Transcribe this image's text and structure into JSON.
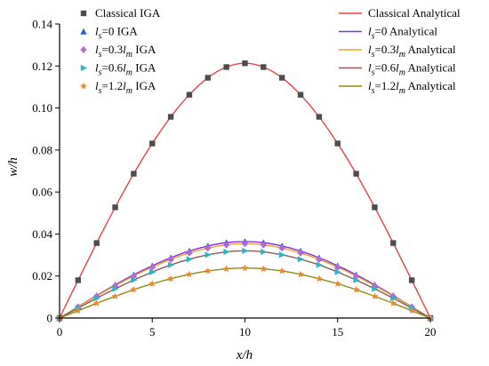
{
  "chart_data": {
    "type": "line",
    "xlabel": "x/h",
    "ylabel": "w/h",
    "xlim": [
      0,
      20
    ],
    "ylim": [
      0,
      0.14
    ],
    "x_ticks": [
      "0",
      "5",
      "10",
      "15",
      "20"
    ],
    "y_ticks": [
      "0",
      "0.02",
      "0.04",
      "0.06",
      "0.08",
      "0.10",
      "0.12",
      "0.14"
    ],
    "grid": false,
    "legend_placement": "top, two columns",
    "x": [
      0,
      1,
      2,
      3,
      4,
      5,
      6,
      7,
      8,
      9,
      10,
      11,
      12,
      13,
      14,
      15,
      16,
      17,
      18,
      19,
      20
    ],
    "series": [
      {
        "name": "Classical IGA",
        "kind": "markers",
        "marker": "square",
        "color": "#4d4d4d",
        "values": [
          0,
          0.018,
          0.0357,
          0.0527,
          0.0687,
          0.0831,
          0.0958,
          0.1063,
          0.1144,
          0.1195,
          0.1213,
          0.1195,
          0.1144,
          0.1063,
          0.0958,
          0.0831,
          0.0687,
          0.0527,
          0.0357,
          0.018,
          0
        ]
      },
      {
        "name": "Classical Analytical",
        "kind": "line",
        "color": "#e8413f",
        "values": [
          0,
          0.018,
          0.0357,
          0.0527,
          0.0687,
          0.0831,
          0.0958,
          0.1063,
          0.1144,
          0.1195,
          0.1213,
          0.1195,
          0.1144,
          0.1063,
          0.0958,
          0.0831,
          0.0687,
          0.0527,
          0.0357,
          0.018,
          0
        ]
      },
      {
        "name": "ls=0 IGA",
        "kind": "markers",
        "marker": "triangle-up",
        "color": "#1f5fd6",
        "values": [
          0,
          0.0054,
          0.0107,
          0.0158,
          0.0206,
          0.0249,
          0.0287,
          0.0319,
          0.0343,
          0.0359,
          0.0364,
          0.0359,
          0.0343,
          0.0319,
          0.0287,
          0.0249,
          0.0206,
          0.0158,
          0.0107,
          0.0054,
          0
        ]
      },
      {
        "name": "ls=0 Analytical",
        "kind": "line",
        "color": "#8a2be2",
        "values": [
          0,
          0.0054,
          0.0107,
          0.0158,
          0.0206,
          0.0249,
          0.0287,
          0.0319,
          0.0343,
          0.0359,
          0.0364,
          0.0359,
          0.0343,
          0.0319,
          0.0287,
          0.0249,
          0.0206,
          0.0158,
          0.0107,
          0.0054,
          0
        ]
      },
      {
        "name": "ls=0.3lm IGA",
        "kind": "markers",
        "marker": "diamond",
        "color": "#b36ad6",
        "values": [
          0,
          0.0053,
          0.0104,
          0.0154,
          0.02,
          0.0242,
          0.0279,
          0.031,
          0.0333,
          0.0348,
          0.0354,
          0.0348,
          0.0333,
          0.031,
          0.0279,
          0.0242,
          0.02,
          0.0154,
          0.0104,
          0.0053,
          0
        ]
      },
      {
        "name": "ls=0.3lm Analytical",
        "kind": "line",
        "color": "#e0a826",
        "values": [
          0,
          0.0053,
          0.0104,
          0.0154,
          0.02,
          0.0242,
          0.0279,
          0.031,
          0.0333,
          0.0348,
          0.0354,
          0.0348,
          0.0333,
          0.031,
          0.0279,
          0.0242,
          0.02,
          0.0154,
          0.0104,
          0.0053,
          0
        ]
      },
      {
        "name": "ls=0.6lm IGA",
        "kind": "markers",
        "marker": "triangle-right",
        "color": "#2ab5c8",
        "values": [
          0,
          0.0047,
          0.0094,
          0.0139,
          0.0181,
          0.0219,
          0.0253,
          0.028,
          0.0301,
          0.0315,
          0.032,
          0.0315,
          0.0301,
          0.028,
          0.0253,
          0.0219,
          0.0181,
          0.0139,
          0.0094,
          0.0047,
          0
        ]
      },
      {
        "name": "ls=0.6lm Analytical",
        "kind": "line",
        "color": "#8b5a5a",
        "values": [
          0,
          0.0047,
          0.0094,
          0.0139,
          0.0181,
          0.0219,
          0.0253,
          0.028,
          0.0301,
          0.0315,
          0.032,
          0.0315,
          0.0301,
          0.028,
          0.0253,
          0.0219,
          0.0181,
          0.0139,
          0.0094,
          0.0047,
          0
        ]
      },
      {
        "name": "ls=1.2lm IGA",
        "kind": "markers",
        "marker": "star",
        "color": "#e88a30",
        "values": [
          0,
          0.0035,
          0.007,
          0.0103,
          0.0135,
          0.0163,
          0.0187,
          0.0208,
          0.0224,
          0.0234,
          0.0238,
          0.0234,
          0.0224,
          0.0208,
          0.0187,
          0.0163,
          0.0135,
          0.0103,
          0.007,
          0.0035,
          0
        ]
      },
      {
        "name": "ls=1.2lm Analytical",
        "kind": "line",
        "color": "#8e8a12",
        "values": [
          0,
          0.0035,
          0.007,
          0.0103,
          0.0135,
          0.0163,
          0.0187,
          0.0208,
          0.0224,
          0.0234,
          0.0238,
          0.0234,
          0.0224,
          0.0208,
          0.0187,
          0.0163,
          0.0135,
          0.0103,
          0.007,
          0.0035,
          0
        ]
      }
    ],
    "legend": [
      {
        "series": 0,
        "prefix": "Classical IGA",
        "value": ""
      },
      {
        "series": 2,
        "prefix": "l",
        "sub": "s",
        "value": "=0 IGA"
      },
      {
        "series": 4,
        "prefix": "l",
        "sub": "s",
        "value": "=0.3",
        "l2": "l",
        "sub2": "m",
        "tail": " IGA"
      },
      {
        "series": 6,
        "prefix": "l",
        "sub": "s",
        "value": "=0.6",
        "l2": "l",
        "sub2": "m",
        "tail": " IGA"
      },
      {
        "series": 8,
        "prefix": "l",
        "sub": "s",
        "value": "=1.2",
        "l2": "l",
        "sub2": "m",
        "tail": " IGA"
      },
      {
        "series": 1,
        "prefix": "Classical Analytical",
        "value": ""
      },
      {
        "series": 3,
        "prefix": "l",
        "sub": "s",
        "value": "=0 Analytical"
      },
      {
        "series": 5,
        "prefix": "l",
        "sub": "s",
        "value": "=0.3",
        "l2": "l",
        "sub2": "m",
        "tail": " Analytical"
      },
      {
        "series": 7,
        "prefix": "l",
        "sub": "s",
        "value": "=0.6",
        "l2": "l",
        "sub2": "m",
        "tail": " Analytical"
      },
      {
        "series": 9,
        "prefix": "l",
        "sub": "s",
        "value": "=1.2",
        "l2": "l",
        "sub2": "m",
        "tail": " Analytical"
      }
    ]
  }
}
